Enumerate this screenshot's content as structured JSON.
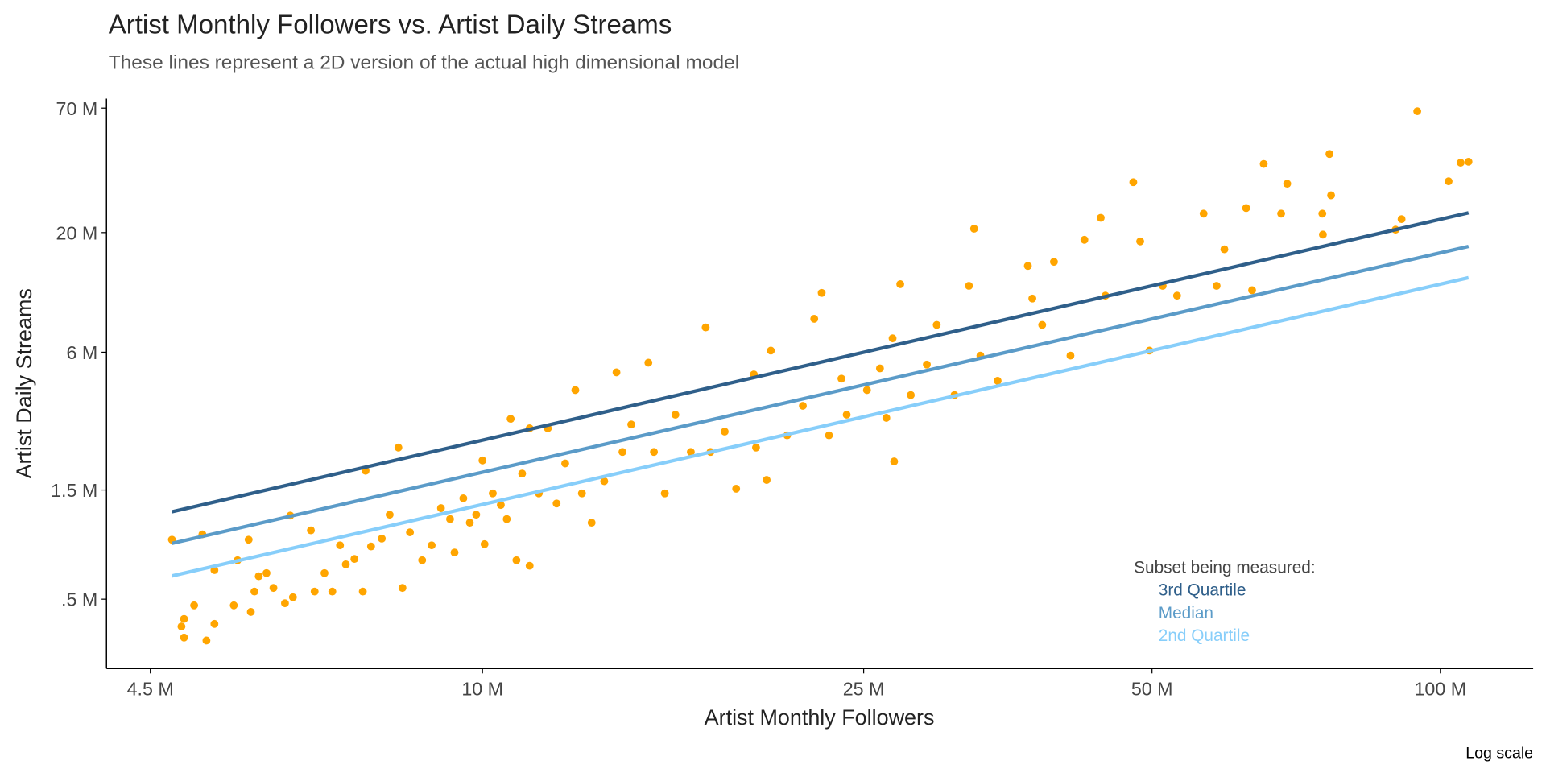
{
  "chart_data": {
    "type": "scatter",
    "title": "Artist Monthly Followers vs. Artist Daily Streams",
    "subtitle": "These lines represent a 2D version of the actual high dimensional model",
    "x_label": "Artist Monthly Followers",
    "y_label": "Artist Daily Streams",
    "caption": "Log scale",
    "xscale": "log",
    "yscale": "log",
    "grid": false,
    "xlim": [
      4.05,
      125
    ],
    "ylim": [
      0.249,
      77
    ],
    "xticks": [
      {
        "value": 4.5,
        "label": "4.5 M"
      },
      {
        "value": 10,
        "label": "10 M"
      },
      {
        "value": 25,
        "label": "25 M"
      },
      {
        "value": 50,
        "label": "50 M"
      },
      {
        "value": 100,
        "label": "100 M"
      }
    ],
    "yticks": [
      {
        "value": 0.5,
        "label": ".5 M"
      },
      {
        "value": 1.5,
        "label": "1.5 M"
      },
      {
        "value": 6,
        "label": "6 M"
      },
      {
        "value": 20,
        "label": "20 M"
      },
      {
        "value": 70,
        "label": "70 M"
      }
    ],
    "color": "#ffa500",
    "x": [
      4.74,
      4.85,
      4.88,
      4.88,
      5.0,
      5.1,
      5.15,
      5.25,
      5.25,
      5.5,
      5.55,
      5.7,
      5.73,
      5.78,
      5.84,
      5.95,
      6.05,
      6.22,
      6.3,
      6.34,
      6.62,
      6.68,
      6.84,
      6.97,
      7.1,
      7.2,
      7.35,
      7.5,
      7.55,
      7.65,
      7.85,
      8.0,
      8.17,
      8.25,
      8.4,
      8.65,
      8.85,
      9.05,
      9.25,
      9.35,
      9.55,
      9.7,
      9.85,
      10.0,
      10.05,
      10.25,
      10.45,
      10.6,
      10.7,
      10.85,
      11.0,
      11.2,
      11.2,
      11.45,
      11.7,
      11.95,
      12.2,
      12.5,
      12.7,
      13.0,
      13.4,
      13.8,
      14.0,
      14.3,
      14.9,
      15.1,
      15.5,
      15.9,
      16.5,
      17.1,
      17.3,
      17.9,
      18.4,
      19.2,
      19.3,
      19.8,
      20.0,
      20.8,
      21.6,
      22.2,
      22.6,
      23.0,
      23.7,
      24.0,
      25.2,
      26.0,
      26.4,
      26.8,
      26.9,
      27.3,
      28.0,
      29.1,
      29.8,
      31.1,
      32.2,
      32.6,
      33.1,
      34.5,
      37.1,
      37.5,
      38.4,
      39.5,
      41.1,
      42.5,
      44.2,
      44.7,
      47.8,
      48.6,
      49.7,
      51.3,
      53.1,
      56.6,
      58.4,
      59.5,
      62.7,
      63.6,
      65.4,
      68.2,
      69.2,
      75.3,
      76.6,
      76.9,
      91.1,
      94.6,
      102,
      105,
      107,
      75.4,
      89.8
    ],
    "values": [
      0.91,
      0.38,
      0.41,
      0.34,
      0.47,
      0.96,
      0.33,
      0.67,
      0.39,
      0.47,
      0.74,
      0.91,
      0.44,
      0.54,
      0.63,
      0.65,
      0.56,
      0.48,
      1.16,
      0.51,
      1.0,
      0.54,
      0.65,
      0.54,
      0.86,
      0.71,
      0.75,
      0.54,
      1.82,
      0.85,
      0.92,
      1.17,
      2.3,
      0.56,
      0.98,
      0.74,
      0.86,
      1.25,
      1.12,
      0.8,
      1.38,
      1.08,
      1.17,
      2.02,
      0.87,
      1.45,
      1.29,
      1.12,
      3.07,
      0.74,
      1.77,
      2.79,
      0.7,
      1.45,
      2.79,
      1.31,
      1.96,
      4.1,
      1.45,
      1.08,
      1.64,
      4.9,
      2.2,
      2.9,
      5.4,
      2.2,
      1.45,
      3.2,
      2.2,
      7.7,
      2.2,
      2.7,
      1.52,
      4.8,
      2.3,
      1.66,
      6.1,
      2.6,
      3.5,
      8.4,
      10.9,
      2.6,
      4.6,
      3.2,
      4.1,
      5.1,
      3.1,
      6.9,
      2.0,
      11.9,
      3.9,
      5.3,
      7.9,
      3.9,
      11.7,
      20.8,
      5.8,
      4.5,
      14.3,
      10.3,
      7.9,
      14.9,
      5.8,
      18.6,
      23.2,
      10.6,
      33.2,
      18.3,
      6.1,
      11.7,
      10.6,
      24.2,
      11.7,
      16.9,
      25.6,
      11.2,
      39.9,
      24.2,
      32.7,
      24.2,
      44.1,
      29.1,
      22.9,
      67.8,
      33.5,
      40.4,
      40.8,
      19.6,
      20.6
    ],
    "legend_title": "Subset being measured:",
    "lines": [
      {
        "name": "3rd Quartile",
        "color": "#2f5f8a",
        "x": [
          4.74,
          107
        ],
        "values": [
          1.205,
          24.4
        ]
      },
      {
        "name": "Median",
        "color": "#5b9bc8",
        "x": [
          4.74,
          107
        ],
        "values": [
          0.877,
          17.4
        ]
      },
      {
        "name": "2nd Quartile",
        "color": "#87cefa",
        "x": [
          4.74,
          107
        ],
        "values": [
          0.632,
          12.7
        ]
      }
    ]
  }
}
